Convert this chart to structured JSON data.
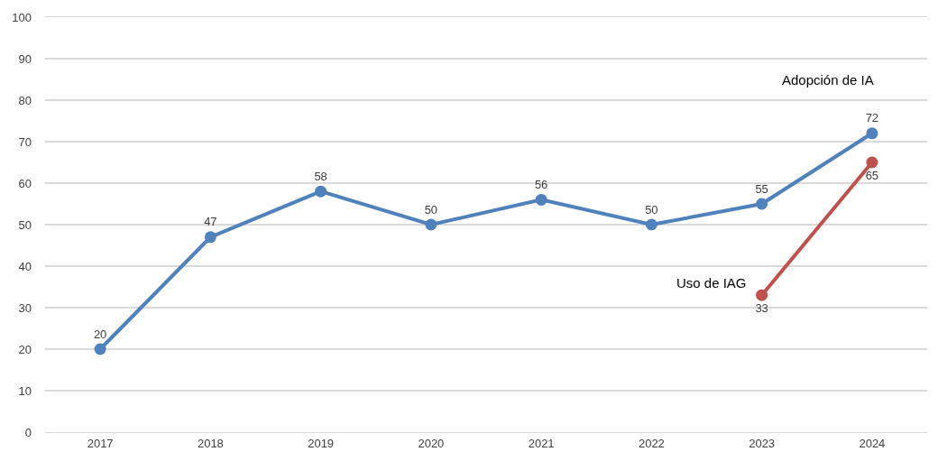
{
  "chart_data": {
    "type": "line",
    "categories": [
      "2017",
      "2018",
      "2019",
      "2020",
      "2021",
      "2022",
      "2023",
      "2024"
    ],
    "series": [
      {
        "name": "Adopción de IA",
        "color": "#4f81bd",
        "values": [
          20,
          47,
          58,
          50,
          56,
          50,
          55,
          72
        ]
      },
      {
        "name": "Uso de IAG",
        "color": "#c0504d",
        "values": [
          null,
          null,
          null,
          null,
          null,
          null,
          33,
          65
        ]
      }
    ],
    "ylim": [
      0,
      100
    ],
    "yticks": [
      0,
      10,
      20,
      30,
      40,
      50,
      60,
      70,
      80,
      90,
      100
    ],
    "grid": "y",
    "legend": false,
    "marker": "circle",
    "line_style": "solid",
    "data_labels": true
  }
}
